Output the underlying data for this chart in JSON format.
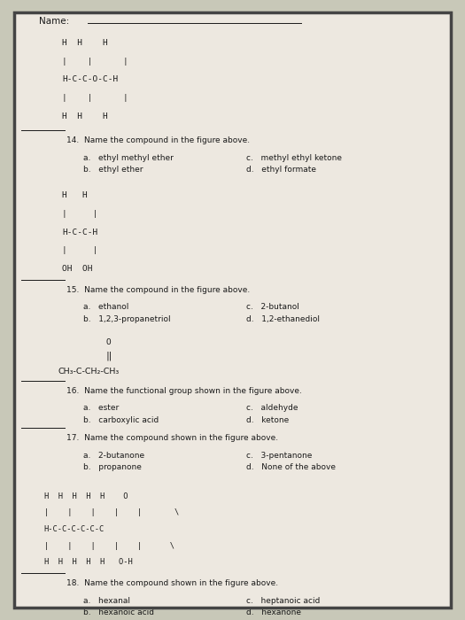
{
  "bg_color": "#c8c8b8",
  "paper_color": "#ede8e0",
  "text_color": "#1a1a1a",
  "line_color": "#333333",
  "name_label": "Name:",
  "q14_struct": [
    "H  H    H",
    "|    |      |",
    "H-C-C-O-C-H",
    "|    |      |",
    "H  H    H"
  ],
  "q14_num": "14.",
  "q14_q": "Name the compound in the figure above.",
  "q14_a": "a.   ethyl methyl ether",
  "q14_b": "b.   ethyl ether",
  "q14_c": "c.   methyl ethyl ketone",
  "q14_d": "d.   ethyl formate",
  "q15_struct": [
    "H   H",
    "|     |",
    "H-C-C-H",
    "|     |",
    "OH  OH"
  ],
  "q15_num": "15.",
  "q15_q": "Name the compound in the figure above.",
  "q15_a": "a.   ethanol",
  "q15_b": "b.   1,2,3-propanetriol",
  "q15_c": "c.   2-butanol",
  "q15_d": "d.   1,2-ethanediol",
  "q16_struct_top": "O",
  "q16_struct_mid": "‖",
  "q16_struct_bot": "CH₃-C-CH₂-CH₃",
  "q16_num": "16.",
  "q16_q": "Name the functional group shown in the figure above.",
  "q16_a": "a.   ester",
  "q16_b": "b.   carboxylic acid",
  "q16_c": "c.   aldehyde",
  "q16_d": "d.   ketone",
  "q17_num": "17.",
  "q17_q": "Name the compound shown in the figure above.",
  "q17_a": "a.   2-butanone",
  "q17_b": "b.   propanone",
  "q17_c": "c.   3-pentanone",
  "q17_d": "d.   None of the above",
  "q18_struct": [
    "H  H  H  H  H    O",
    "|    |    |    |    |       \\",
    "H-C-C-C-C-C-C",
    "|    |    |    |    |      \\",
    "H  H  H  H  H   O-H"
  ],
  "q18_num": "18.",
  "q18_q": "Name the compound shown in the figure above.",
  "q18_a": "a.   hexanal",
  "q18_b": "b.   hexanoic acid",
  "q18_c": "c.   heptanoic acid",
  "q18_d": "d.   hexanone"
}
